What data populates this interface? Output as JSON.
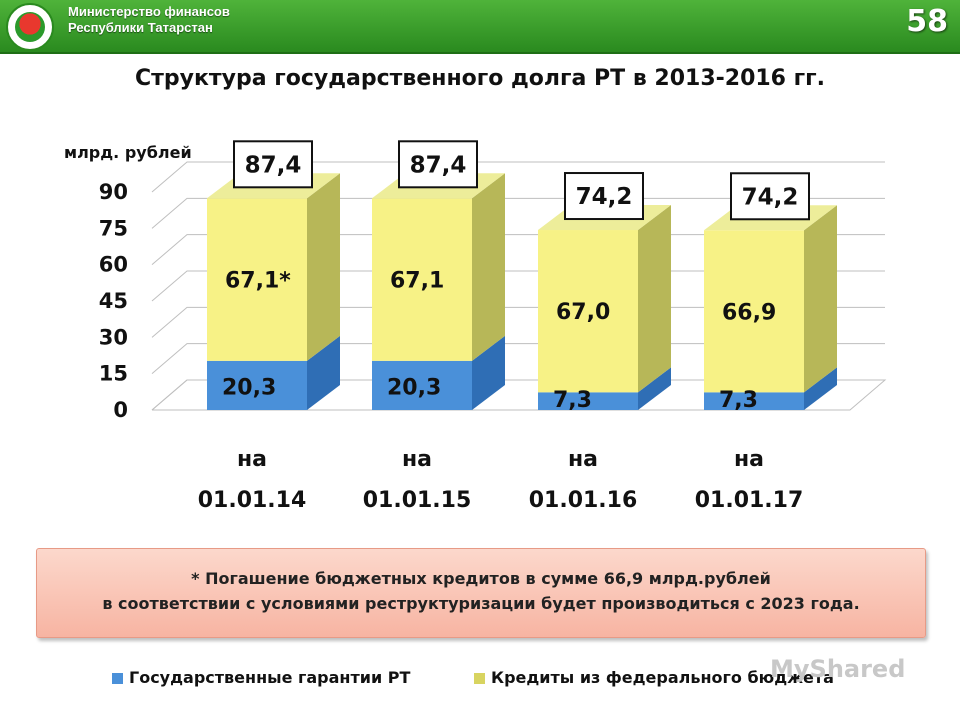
{
  "header": {
    "org_line1": "Министерство финансов",
    "org_line2": "Республики Татарстан",
    "page_number": "58"
  },
  "chart_data": {
    "type": "bar",
    "stacked": true,
    "title": "Структура государственного долга РТ в 2013-2016 гг.",
    "ylabel": "млрд. рублей",
    "ylim": [
      0,
      90
    ],
    "yticks": [
      "0",
      "15",
      "30",
      "45",
      "60",
      "75",
      "90"
    ],
    "categories": [
      {
        "line1": "на",
        "line2": "01.01.14"
      },
      {
        "line1": "на",
        "line2": "01.01.15"
      },
      {
        "line1": "на",
        "line2": "01.01.16"
      },
      {
        "line1": "на",
        "line2": "01.01.17"
      }
    ],
    "series": [
      {
        "name": "Государственные гарантии РТ",
        "values": [
          20.3,
          20.3,
          7.3,
          7.3
        ],
        "labels": [
          "20,3",
          "20,3",
          "7,3",
          "7,3"
        ],
        "color": "#4a90d9"
      },
      {
        "name": "Кредиты из федерального бюджета",
        "values": [
          67.1,
          67.1,
          67.0,
          66.9
        ],
        "labels": [
          "67,1*",
          "67,1",
          "67,0",
          "66,9"
        ],
        "color": "#f7f286"
      }
    ],
    "totals": [
      "87,4",
      "87,4",
      "74,2",
      "74,2"
    ]
  },
  "note": {
    "line1": "* Погашение бюджетных кредитов в сумме 66,9 млрд.рублей",
    "line2": "в соответствии с условиями реструктуризации будет производиться с 2023 года."
  },
  "watermark": "MyShared"
}
